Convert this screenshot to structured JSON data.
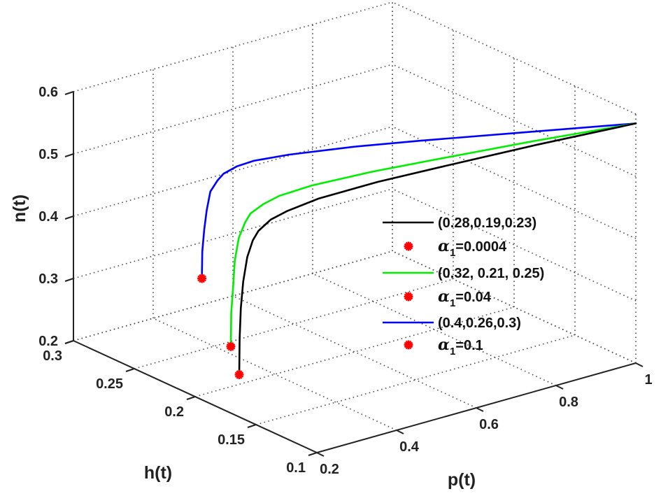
{
  "chart_data": {
    "type": "line3d",
    "title": "",
    "xlabel": "p(t)",
    "ylabel": "h(t)",
    "zlabel": "n(t)",
    "xlim": [
      0.2,
      1.0
    ],
    "ylim": [
      0.1,
      0.3
    ],
    "zlim": [
      0.2,
      0.6
    ],
    "xticks": [
      "0.2",
      "0.4",
      "0.6",
      "0.8",
      "1"
    ],
    "yticks": [
      "0.1",
      "0.15",
      "0.2",
      "0.25",
      "0.3"
    ],
    "zticks": [
      "0.2",
      "0.3",
      "0.4",
      "0.5",
      "0.6"
    ],
    "grid": true,
    "legend_position": "center-right",
    "series": [
      {
        "name": "(0.28,0.19,0.23)",
        "color": "#000000",
        "marker_label": {
          "symbol": "α",
          "sub": "1",
          "value": "=0.0004"
        },
        "start": [
          0.28,
          0.19,
          0.23
        ],
        "points": [
          [
            0.28,
            0.19,
            0.23
          ],
          [
            0.281,
            0.19,
            0.288
          ],
          [
            0.284,
            0.19,
            0.336
          ],
          [
            0.287,
            0.189,
            0.379
          ],
          [
            0.294,
            0.188,
            0.418
          ],
          [
            0.305,
            0.187,
            0.444
          ],
          [
            0.316,
            0.186,
            0.458
          ],
          [
            0.338,
            0.183,
            0.475
          ],
          [
            0.366,
            0.179,
            0.487
          ],
          [
            0.424,
            0.172,
            0.503
          ],
          [
            0.532,
            0.159,
            0.522
          ],
          [
            0.64,
            0.145,
            0.538
          ],
          [
            0.82,
            0.123,
            0.562
          ],
          [
            1.0,
            0.1,
            0.585
          ]
        ]
      },
      {
        "name": "(0.32, 0.21, 0.25)",
        "color": "#00ee00",
        "marker_label": {
          "symbol": "α",
          "sub": "1",
          "value": "=0.04"
        },
        "start": [
          0.32,
          0.21,
          0.25
        ],
        "points": [
          [
            0.32,
            0.21,
            0.25
          ],
          [
            0.321,
            0.21,
            0.304
          ],
          [
            0.323,
            0.209,
            0.348
          ],
          [
            0.327,
            0.209,
            0.388
          ],
          [
            0.334,
            0.208,
            0.424
          ],
          [
            0.344,
            0.206,
            0.449
          ],
          [
            0.354,
            0.205,
            0.462
          ],
          [
            0.374,
            0.201,
            0.477
          ],
          [
            0.402,
            0.197,
            0.489
          ],
          [
            0.456,
            0.188,
            0.504
          ],
          [
            0.558,
            0.172,
            0.522
          ],
          [
            0.66,
            0.155,
            0.538
          ],
          [
            0.83,
            0.128,
            0.562
          ],
          [
            1.0,
            0.1,
            0.585
          ]
        ]
      },
      {
        "name": "(0.4,0.26,0.3)",
        "color": "#0000ff",
        "marker_label": {
          "symbol": "α",
          "sub": "1",
          "value": "=0.1"
        },
        "start": [
          0.4,
          0.26,
          0.3
        ],
        "points": [
          [
            0.4,
            0.26,
            0.3
          ],
          [
            0.401,
            0.26,
            0.343
          ],
          [
            0.403,
            0.259,
            0.379
          ],
          [
            0.406,
            0.258,
            0.41
          ],
          [
            0.412,
            0.257,
            0.44
          ],
          [
            0.421,
            0.254,
            0.459
          ],
          [
            0.43,
            0.252,
            0.47
          ],
          [
            0.448,
            0.247,
            0.483
          ],
          [
            0.472,
            0.241,
            0.493
          ],
          [
            0.52,
            0.228,
            0.506
          ],
          [
            0.61,
            0.204,
            0.524
          ],
          [
            0.7,
            0.18,
            0.539
          ],
          [
            0.85,
            0.14,
            0.562
          ],
          [
            1.0,
            0.1,
            0.585
          ]
        ]
      }
    ],
    "marker_color": "#ff0000"
  }
}
